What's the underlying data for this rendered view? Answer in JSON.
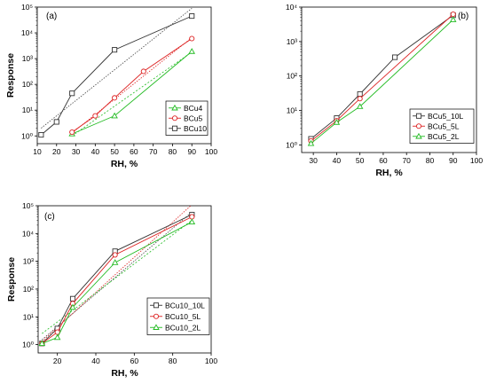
{
  "chart_data": [
    {
      "type": "line",
      "panel_label": "(a)",
      "xlabel": "RH, %",
      "ylabel": "Response",
      "xlim": [
        10,
        100
      ],
      "ylim": [
        0.5,
        100000
      ],
      "yscale": "log",
      "xticks": [
        10,
        20,
        30,
        40,
        50,
        60,
        70,
        80,
        90,
        100
      ],
      "yticks": [
        1,
        10,
        100,
        1000,
        10000,
        100000
      ],
      "ytick_labels": [
        "10⁰",
        "10¹",
        "10²",
        "10³",
        "10⁴",
        "10⁵"
      ],
      "legend_position": "bottom-right",
      "series": [
        {
          "name": "BCu4",
          "color": "#22bb22",
          "marker": "triangle",
          "x": [
            28,
            50,
            90
          ],
          "y": [
            1.2,
            6,
            1900
          ],
          "fit": {
            "x": [
              28,
              90
            ],
            "y": [
              1.0,
              1800
            ],
            "color": "#22bb22",
            "dash": "2,2"
          }
        },
        {
          "name": "BCu5",
          "color": "#dd2222",
          "marker": "circle",
          "x": [
            28,
            40,
            50,
            65,
            90
          ],
          "y": [
            1.4,
            6,
            30,
            320,
            6000
          ],
          "fit": {
            "x": [
              28,
              90
            ],
            "y": [
              1.3,
              6500
            ],
            "color": "#dd2222",
            "dash": "1.5,1.5"
          }
        },
        {
          "name": "BCu10",
          "color": "#333333",
          "marker": "square",
          "x": [
            12,
            20,
            28,
            50,
            90
          ],
          "y": [
            1.1,
            3.5,
            45,
            2200,
            45000
          ],
          "fit": {
            "x": [
              12,
              90
            ],
            "y": [
              2,
              90000
            ],
            "color": "#444444",
            "dash": "1.5,1.5"
          }
        }
      ]
    },
    {
      "type": "line",
      "panel_label": "(b)",
      "xlabel": "RH, %",
      "ylabel": "",
      "xlim": [
        25,
        100
      ],
      "ylim": [
        0.6,
        10000
      ],
      "yscale": "log",
      "xticks": [
        30,
        40,
        50,
        60,
        70,
        80,
        90,
        100
      ],
      "yticks": [
        1,
        10,
        100,
        1000,
        10000
      ],
      "ytick_labels": [
        "10⁰",
        "10¹",
        "10²",
        "10³",
        "10⁴"
      ],
      "legend_position": "bottom-right",
      "series": [
        {
          "name": "BCu5_10L",
          "color": "#333333",
          "marker": "square",
          "x": [
            29,
            40,
            50,
            65,
            90
          ],
          "y": [
            1.5,
            6,
            30,
            350,
            5800
          ]
        },
        {
          "name": "BCu5_5L",
          "color": "#dd2222",
          "marker": "circle",
          "x": [
            29,
            40,
            50,
            90
          ],
          "y": [
            1.3,
            5,
            22,
            6200
          ]
        },
        {
          "name": "BCu5_2L",
          "color": "#22bb22",
          "marker": "triangle",
          "x": [
            29,
            40,
            50,
            90
          ],
          "y": [
            1.1,
            4.5,
            13,
            4300
          ]
        }
      ]
    },
    {
      "type": "line",
      "panel_label": "(c)",
      "xlabel": "RH, %",
      "ylabel": "Response",
      "xlim": [
        10,
        100
      ],
      "ylim": [
        0.5,
        100000
      ],
      "yscale": "log",
      "xticks": [
        20,
        40,
        60,
        80,
        100
      ],
      "yticks": [
        1,
        10,
        100,
        1000,
        10000,
        100000
      ],
      "ytick_labels": [
        "10⁰",
        "10¹",
        "10²",
        "10³",
        "10⁴",
        "10⁵"
      ],
      "legend_position": "bottom-right",
      "series": [
        {
          "name": "BCu10_10L",
          "color": "#333333",
          "marker": "square",
          "x": [
            12,
            20,
            28,
            50,
            90
          ],
          "y": [
            1.1,
            3.8,
            45,
            2300,
            48000
          ],
          "fit": {
            "x": [
              12,
              90
            ],
            "y": [
              1.5,
              60000
            ],
            "color": "#444444",
            "dash": "1.5,1.5"
          }
        },
        {
          "name": "BCu10_5L",
          "color": "#dd2222",
          "marker": "circle",
          "x": [
            12,
            20,
            28,
            50,
            90
          ],
          "y": [
            1.1,
            2.8,
            30,
            1700,
            40000
          ],
          "fit": {
            "x": [
              12,
              90
            ],
            "y": [
              1.3,
              110000
            ],
            "color": "#dd2222",
            "dash": "1.5,1.5"
          }
        },
        {
          "name": "BCu10_2L",
          "color": "#22bb22",
          "marker": "triangle",
          "x": [
            12,
            20,
            28,
            50,
            90
          ],
          "y": [
            1.1,
            1.8,
            22,
            900,
            26000
          ],
          "fit": {
            "x": [
              12,
              90
            ],
            "y": [
              2.5,
              30000
            ],
            "color": "#22bb22",
            "dash": "2,2"
          }
        }
      ]
    }
  ]
}
